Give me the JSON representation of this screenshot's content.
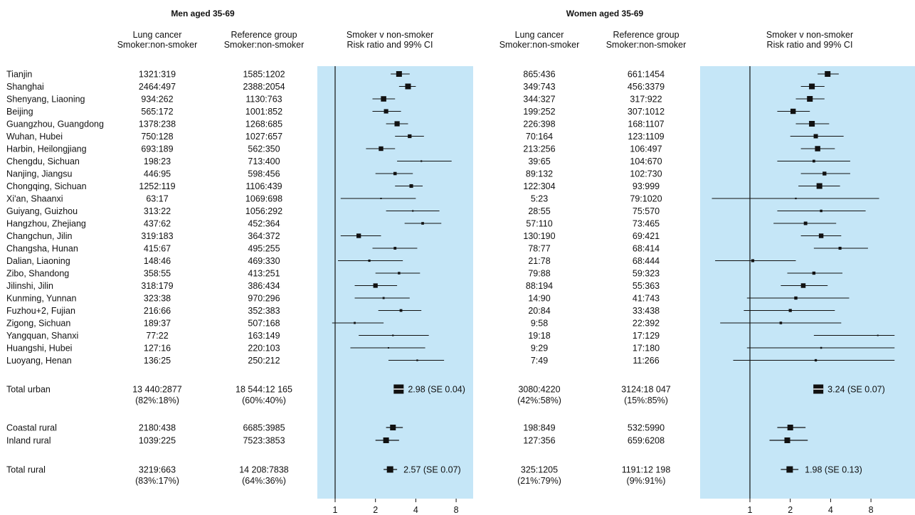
{
  "chart_data": {
    "type": "forest",
    "x_scale": "log2",
    "x_ticks": [
      1,
      2,
      4,
      8
    ],
    "x_tick_labels": [
      "1",
      "2",
      "4",
      "8"
    ],
    "columns": {
      "lung": [
        "Lung cancer",
        "Smoker:non-smoker"
      ],
      "ref": [
        "Reference group",
        "Smoker:non-smoker"
      ],
      "plot": [
        "Smoker v non-smoker",
        "Risk ratio and 99% CI"
      ]
    },
    "panels": [
      {
        "title": "Men aged 35-69",
        "cities": [
          {
            "name": "Tianjin",
            "lung": "1321:319",
            "ref": "1585:1202",
            "rr": 3.0,
            "lo": 2.6,
            "hi": 3.6
          },
          {
            "name": "Shanghai",
            "lung": "2464:497",
            "ref": "2388:2054",
            "rr": 3.5,
            "lo": 3.0,
            "hi": 4.0
          },
          {
            "name": "Shenyang, Liaoning",
            "lung": "934:262",
            "ref": "1130:763",
            "rr": 2.3,
            "lo": 1.9,
            "hi": 2.8
          },
          {
            "name": "Beijing",
            "lung": "565:172",
            "ref": "1001:852",
            "rr": 2.4,
            "lo": 1.9,
            "hi": 3.1
          },
          {
            "name": "Guangzhou, Guangdong",
            "lung": "1378:238",
            "ref": "1268:685",
            "rr": 2.9,
            "lo": 2.4,
            "hi": 3.5
          },
          {
            "name": "Wuhan, Hubei",
            "lung": "750:128",
            "ref": "1027:657",
            "rr": 3.6,
            "lo": 2.8,
            "hi": 4.6
          },
          {
            "name": "Harbin, Heilongjiang",
            "lung": "693:189",
            "ref": "562:350",
            "rr": 2.2,
            "lo": 1.7,
            "hi": 2.8
          },
          {
            "name": "Chengdu, Sichuan",
            "lung": "198:23",
            "ref": "713:400",
            "rr": 4.4,
            "lo": 2.9,
            "hi": 7.4
          },
          {
            "name": "Nanjing, Jiangsu",
            "lung": "446:95",
            "ref": "598:456",
            "rr": 2.8,
            "lo": 2.0,
            "hi": 3.8
          },
          {
            "name": "Chongqing, Sichuan",
            "lung": "1252:119",
            "ref": "1106:439",
            "rr": 3.7,
            "lo": 2.8,
            "hi": 4.5
          },
          {
            "name": "Xi'an, Shaanxi",
            "lung": "63:17",
            "ref": "1069:698",
            "rr": 2.2,
            "lo": 1.1,
            "hi": 4.0
          },
          {
            "name": "Guiyang, Guizhou",
            "lung": "313:22",
            "ref": "1056:292",
            "rr": 3.8,
            "lo": 2.4,
            "hi": 6.0
          },
          {
            "name": "Hangzhou, Zhejiang",
            "lung": "437:62",
            "ref": "452:364",
            "rr": 4.5,
            "lo": 3.3,
            "hi": 6.2
          },
          {
            "name": "Changchun, Jilin",
            "lung": "319:183",
            "ref": "364:372",
            "rr": 1.5,
            "lo": 1.1,
            "hi": 2.2
          },
          {
            "name": "Changsha, Hunan",
            "lung": "415:67",
            "ref": "495:255",
            "rr": 2.8,
            "lo": 1.9,
            "hi": 4.1
          },
          {
            "name": "Dalian, Liaoning",
            "lung": "148:46",
            "ref": "469:330",
            "rr": 1.8,
            "lo": 1.05,
            "hi": 3.2
          },
          {
            "name": "Zibo, Shandong",
            "lung": "358:55",
            "ref": "413:251",
            "rr": 3.0,
            "lo": 2.0,
            "hi": 4.3
          },
          {
            "name": "Jilinshi, Jilin",
            "lung": "318:179",
            "ref": "386:434",
            "rr": 2.0,
            "lo": 1.4,
            "hi": 2.9
          },
          {
            "name": "Kunming, Yunnan",
            "lung": "323:38",
            "ref": "970:296",
            "rr": 2.3,
            "lo": 1.4,
            "hi": 3.6
          },
          {
            "name": "Fuzhou+2, Fujian",
            "lung": "216:66",
            "ref": "352:383",
            "rr": 3.1,
            "lo": 2.1,
            "hi": 4.4
          },
          {
            "name": "Zigong, Sichuan",
            "lung": "189:37",
            "ref": "507:168",
            "rr": 1.4,
            "lo": 0.95,
            "hi": 2.3
          },
          {
            "name": "Yangquan, Shanxi",
            "lung": "77:22",
            "ref": "163:149",
            "rr": 2.7,
            "lo": 1.5,
            "hi": 5.0
          },
          {
            "name": "Huangshi, Hubei",
            "lung": "127:16",
            "ref": "220:103",
            "rr": 2.5,
            "lo": 1.3,
            "hi": 4.7
          },
          {
            "name": "Luoyang, Henan",
            "lung": "136:25",
            "ref": "250:212",
            "rr": 4.1,
            "lo": 2.5,
            "hi": 6.5
          }
        ],
        "summaries": [
          {
            "name": "Total urban",
            "lung": "13 440:2877",
            "lung_pct": "(82%:18%)",
            "ref": "18 544:12 165",
            "ref_pct": "(60%:40%)",
            "rr": 2.98,
            "lo": 2.85,
            "hi": 3.11,
            "label": "2.98 (SE 0.04)",
            "kind": "total"
          },
          {
            "name": "Coastal rural",
            "lung": "2180:438",
            "ref": "6685:3985",
            "rr": 2.7,
            "lo": 2.4,
            "hi": 3.2,
            "kind": "sub"
          },
          {
            "name": "Inland rural",
            "lung": "1039:225",
            "ref": "7523:3853",
            "rr": 2.4,
            "lo": 2.0,
            "hi": 3.0,
            "kind": "sub"
          },
          {
            "name": "Total rural",
            "lung": "3219:663",
            "lung_pct": "(83%:17%)",
            "ref": "14 208:7838",
            "ref_pct": "(64%:36%)",
            "rr": 2.57,
            "lo": 2.3,
            "hi": 2.9,
            "label": "2.57 (SE 0.07)",
            "kind": "total"
          }
        ]
      },
      {
        "title": "Women aged 35-69",
        "cities": [
          {
            "name": "Tianjin",
            "lung": "865:436",
            "ref": "661:1454",
            "rr": 3.8,
            "lo": 3.2,
            "hi": 4.6
          },
          {
            "name": "Shanghai",
            "lung": "349:743",
            "ref": "456:3379",
            "rr": 2.9,
            "lo": 2.4,
            "hi": 3.6
          },
          {
            "name": "Shenyang, Liaoning",
            "lung": "344:327",
            "ref": "317:922",
            "rr": 2.8,
            "lo": 2.2,
            "hi": 3.6
          },
          {
            "name": "Beijing",
            "lung": "199:252",
            "ref": "307:1012",
            "rr": 2.1,
            "lo": 1.6,
            "hi": 2.8
          },
          {
            "name": "Guangzhou, Guangdong",
            "lung": "226:398",
            "ref": "168:1107",
            "rr": 2.9,
            "lo": 2.2,
            "hi": 3.9
          },
          {
            "name": "Wuhan, Hubei",
            "lung": "70:164",
            "ref": "123:1109",
            "rr": 3.1,
            "lo": 2.0,
            "hi": 5.0
          },
          {
            "name": "Harbin, Heilongjiang",
            "lung": "213:256",
            "ref": "106:497",
            "rr": 3.2,
            "lo": 2.4,
            "hi": 4.3
          },
          {
            "name": "Chengdu, Sichuan",
            "lung": "39:65",
            "ref": "104:670",
            "rr": 3.0,
            "lo": 1.6,
            "hi": 5.6
          },
          {
            "name": "Nanjing, Jiangsu",
            "lung": "89:132",
            "ref": "102:730",
            "rr": 3.6,
            "lo": 2.4,
            "hi": 5.6
          },
          {
            "name": "Chongqing, Sichuan",
            "lung": "122:304",
            "ref": "93:999",
            "rr": 3.3,
            "lo": 2.3,
            "hi": 4.7
          },
          {
            "name": "Xi'an, Shaanxi",
            "lung": "5:23",
            "ref": "79:1020",
            "rr": 2.2,
            "lo": 0.52,
            "hi": 9.2
          },
          {
            "name": "Guiyang, Guizhou",
            "lung": "28:55",
            "ref": "75:570",
            "rr": 3.4,
            "lo": 1.6,
            "hi": 7.3
          },
          {
            "name": "Hangzhou, Zhejiang",
            "lung": "57:110",
            "ref": "73:465",
            "rr": 2.6,
            "lo": 1.5,
            "hi": 4.4
          },
          {
            "name": "Changchun, Jilin",
            "lung": "130:190",
            "ref": "69:421",
            "rr": 3.4,
            "lo": 2.4,
            "hi": 4.8
          },
          {
            "name": "Changsha, Hunan",
            "lung": "78:77",
            "ref": "68:414",
            "rr": 4.7,
            "lo": 3.0,
            "hi": 7.6
          },
          {
            "name": "Dalian, Liaoning",
            "lung": "21:78",
            "ref": "68:444",
            "rr": 1.05,
            "lo": 0.55,
            "hi": 2.2
          },
          {
            "name": "Zibo, Shandong",
            "lung": "79:88",
            "ref": "59:323",
            "rr": 3.0,
            "lo": 1.9,
            "hi": 4.9
          },
          {
            "name": "Jilinshi, Jilin",
            "lung": "88:194",
            "ref": "55:363",
            "rr": 2.5,
            "lo": 1.7,
            "hi": 3.8
          },
          {
            "name": "Kunming, Yunnan",
            "lung": "14:90",
            "ref": "41:743",
            "rr": 2.2,
            "lo": 0.95,
            "hi": 5.5
          },
          {
            "name": "Fuzhou+2, Fujian",
            "lung": "20:84",
            "ref": "33:438",
            "rr": 2.0,
            "lo": 0.9,
            "hi": 4.3
          },
          {
            "name": "Zigong, Sichuan",
            "lung": "9:58",
            "ref": "22:392",
            "rr": 1.7,
            "lo": 0.6,
            "hi": 4.8
          },
          {
            "name": "Yangquan, Shanxi",
            "lung": "19:18",
            "ref": "17:129",
            "rr": 9.0,
            "lo": 3.0,
            "hi": 12.0
          },
          {
            "name": "Huangshi, Hubei",
            "lung": "9:29",
            "ref": "17:180",
            "rr": 3.4,
            "lo": 0.95,
            "hi": 12.0
          },
          {
            "name": "Luoyang, Henan",
            "lung": "7:49",
            "ref": "11:266",
            "rr": 3.1,
            "lo": 0.75,
            "hi": 12.0
          }
        ],
        "summaries": [
          {
            "name": "Total urban",
            "lung": "3080:4220",
            "lung_pct": "(42%:58%)",
            "ref": "3124:18 047",
            "ref_pct": "(15%:85%)",
            "rr": 3.24,
            "lo": 3.02,
            "hi": 3.48,
            "label": "3.24 (SE 0.07)",
            "kind": "total"
          },
          {
            "name": "Coastal rural",
            "lung": "198:849",
            "ref": "532:5990",
            "rr": 2.0,
            "lo": 1.6,
            "hi": 2.6,
            "kind": "sub"
          },
          {
            "name": "Inland rural",
            "lung": "127:356",
            "ref": "659:6208",
            "rr": 1.9,
            "lo": 1.4,
            "hi": 2.7,
            "kind": "sub"
          },
          {
            "name": "Total rural",
            "lung": "325:1205",
            "lung_pct": "(21%:79%)",
            "ref": "1191:12 198",
            "ref_pct": "(9%:91%)",
            "rr": 1.98,
            "lo": 1.7,
            "hi": 2.3,
            "label": "1.98 (SE 0.13)",
            "kind": "total"
          }
        ]
      }
    ],
    "colors": {
      "plot_bg": "#c5e6f7",
      "marker": "#111111"
    }
  }
}
